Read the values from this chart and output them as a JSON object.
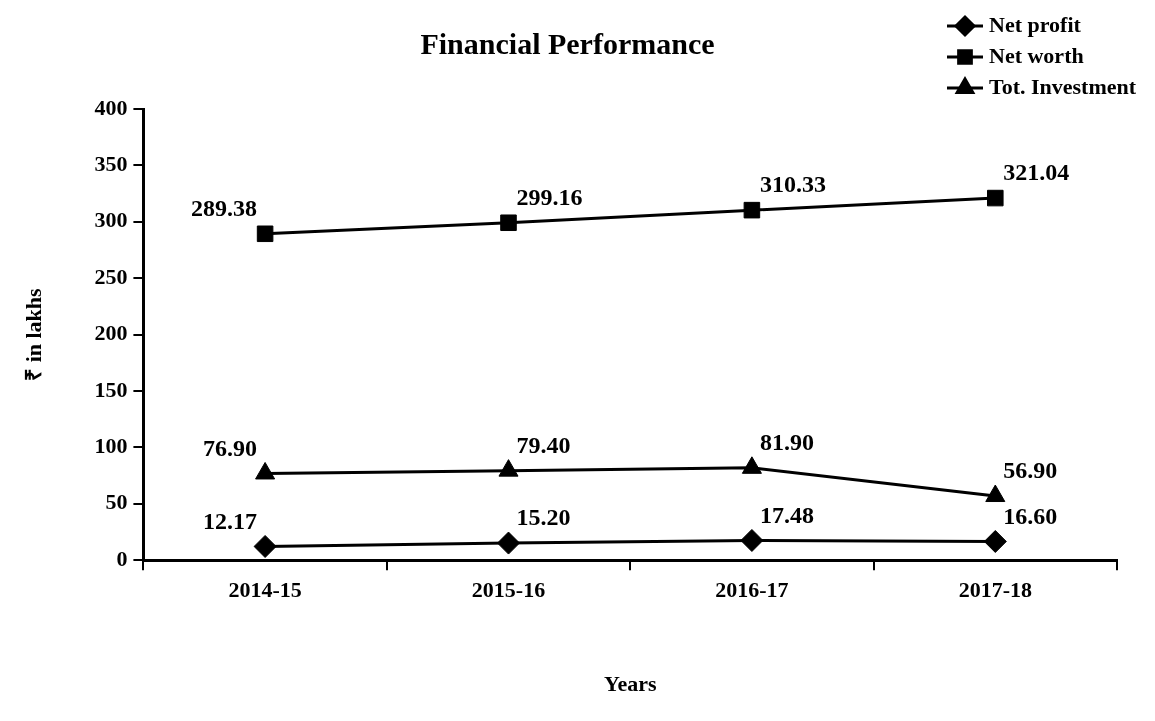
{
  "chart_data": {
    "type": "line",
    "title": "Financial Performance",
    "xlabel": "Years",
    "ylabel": "₹ in lakhs",
    "categories": [
      "2014-15",
      "2015-16",
      "2016-17",
      "2017-18"
    ],
    "series": [
      {
        "name": "Net profit",
        "color": "#000000",
        "marker": "diamond",
        "values": [
          12.17,
          15.2,
          17.48,
          16.6
        ],
        "value_labels": [
          "12.17",
          "15.20",
          "17.48",
          "16.60"
        ]
      },
      {
        "name": "Net worth",
        "color": "#000000",
        "marker": "square",
        "values": [
          289.38,
          299.16,
          310.33,
          321.04
        ],
        "value_labels": [
          "289.38",
          "299.16",
          "310.33",
          "321.04"
        ]
      },
      {
        "name": "Tot. Investment",
        "color": "#000000",
        "marker": "triangle",
        "values": [
          76.9,
          79.4,
          81.9,
          56.9
        ],
        "value_labels": [
          "76.90",
          "79.40",
          "81.90",
          "56.90"
        ]
      }
    ],
    "ylim": [
      0,
      400
    ],
    "yticks": [
      0,
      50,
      100,
      150,
      200,
      250,
      300,
      350,
      400
    ],
    "grid": false,
    "legend": "top right"
  }
}
